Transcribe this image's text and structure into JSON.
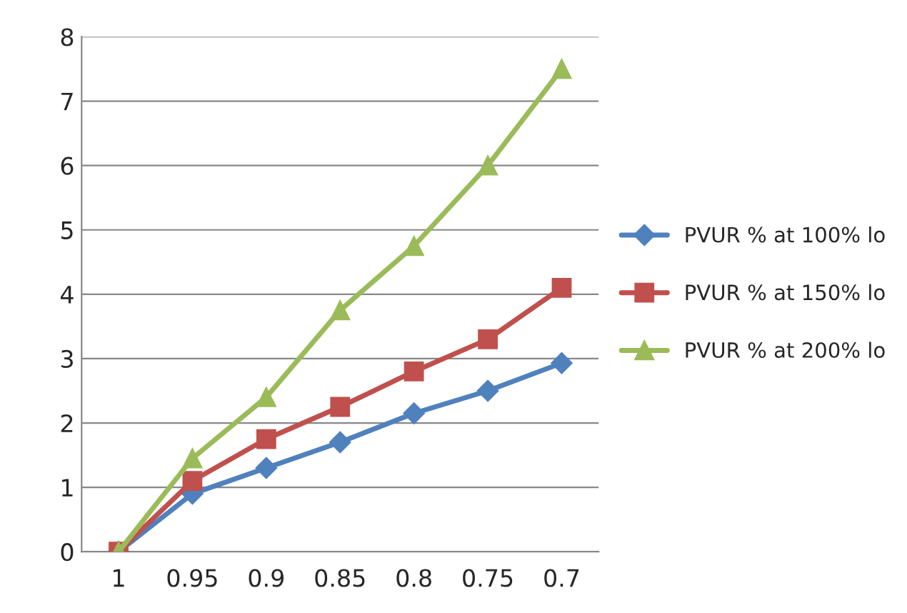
{
  "chart_data": {
    "type": "line",
    "categories": [
      "1",
      "0.95",
      "0.9",
      "0.85",
      "0.8",
      "0.75",
      "0.7"
    ],
    "series": [
      {
        "name": "PVUR % at 100% lo",
        "color": "#4f81bd",
        "marker": "diamond",
        "values": [
          0,
          0.9,
          1.3,
          1.7,
          2.15,
          2.5,
          2.93
        ]
      },
      {
        "name": "PVUR % at 150% lo",
        "color": "#c0504d",
        "marker": "square",
        "values": [
          0,
          1.1,
          1.75,
          2.25,
          2.8,
          3.3,
          4.1
        ]
      },
      {
        "name": "PVUR % at 200% lo",
        "color": "#9bbb59",
        "marker": "triangle",
        "values": [
          0,
          1.45,
          2.4,
          3.75,
          4.75,
          6.0,
          7.5
        ]
      }
    ],
    "ylim": [
      0,
      8
    ],
    "yticks": [
      0,
      1,
      2,
      3,
      4,
      5,
      6,
      7,
      8
    ],
    "grid": "y",
    "legend": "right",
    "line_style": "solid"
  }
}
